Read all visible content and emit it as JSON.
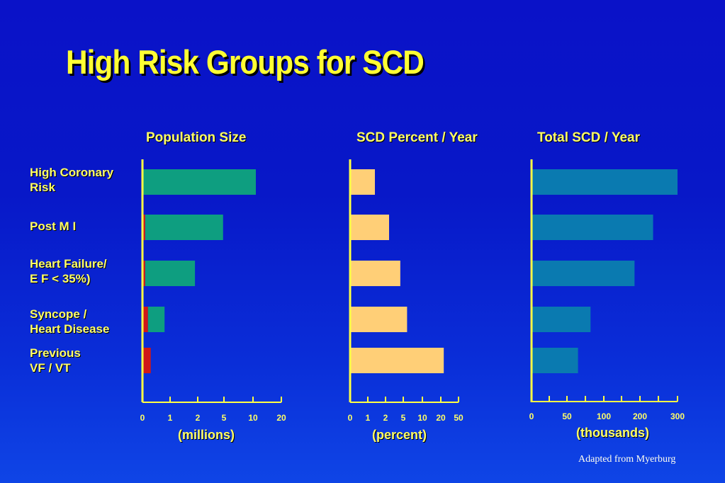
{
  "title": "High Risk Groups for SCD",
  "credit": "Adapted from Myerburg",
  "categories": [
    "High Coronary\nRisk",
    "Post M I",
    "Heart Failure/\nE F < 35%)",
    "Syncope  /\nHeart Disease",
    "Previous\nVF / VT"
  ],
  "chart_data": [
    {
      "type": "bar",
      "title": "Population Size",
      "xlabel": "(millions)",
      "scale": "piecewise",
      "ticks": [
        "0",
        "1",
        "2",
        "5",
        "10",
        "20"
      ],
      "tick_values": [
        0,
        1,
        2,
        5,
        10,
        20
      ],
      "series": [
        {
          "color": "#d01818",
          "values": [
            0,
            0.1,
            0.1,
            0.2,
            0.3
          ]
        },
        {
          "color": "#0e9e80",
          "values": [
            11,
            4.8,
            1.8,
            0.6,
            0
          ]
        }
      ],
      "stacked": true
    },
    {
      "type": "bar",
      "title": "SCD Percent / Year",
      "xlabel": "(percent)",
      "scale": "piecewise",
      "ticks": [
        "0",
        "1",
        "2",
        "5",
        "10",
        "20",
        "50"
      ],
      "tick_values": [
        0,
        1,
        2,
        5,
        10,
        20,
        50
      ],
      "series": [
        {
          "color": "#ffcf77",
          "values": [
            1.4,
            2.6,
            4.5,
            6,
            25
          ]
        }
      ]
    },
    {
      "type": "bar",
      "title": "Total SCD / Year",
      "xlabel": "(thousands)",
      "scale": "linear",
      "ticks": [
        "0",
        "50",
        "100",
        "200",
        "300"
      ],
      "tick_values": [
        0,
        50,
        100,
        200,
        300
      ],
      "series": [
        {
          "color": "#0a7ab0",
          "values": [
            300,
            235,
            185,
            82,
            65
          ]
        }
      ]
    }
  ]
}
